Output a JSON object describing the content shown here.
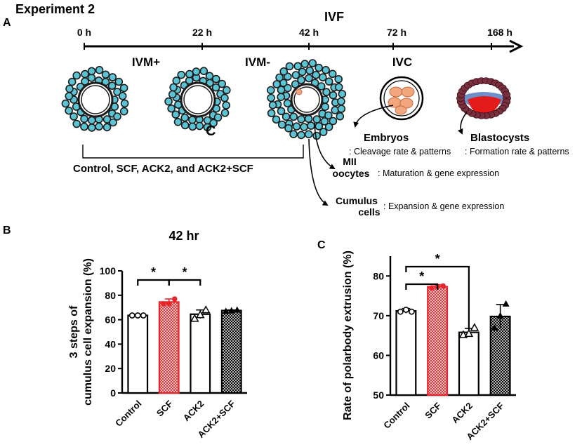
{
  "panel_labels": {
    "a": "A",
    "b": "B",
    "c": "C"
  },
  "experiment_title": "Experiment 2",
  "ivf_label": "IVF",
  "timeline": {
    "ticks": [
      "0 h",
      "22 h",
      "42 h",
      "72 h",
      "168 h"
    ],
    "stages": [
      "IVM+",
      "IVM-",
      "IVC"
    ]
  },
  "cell_mark": "C",
  "treatment_groups": "Control, SCF, ACK2, and ACK2+SCF",
  "outcomes": {
    "embryos_title": "Embryos",
    "embryos_desc": ": Cleavage rate & patterns",
    "blastocysts_title": "Blastocysts",
    "blastocysts_desc": ": Formation rate  & patterns",
    "mii_line1": "MII",
    "mii_line2": "oocytes",
    "mii_desc": ": Maturation & gene expression",
    "cumulus_line1": "Cumulus",
    "cumulus_line2": "cells",
    "cumulus_desc": ": Expansion & gene expression"
  },
  "colors": {
    "scf": "#e8252b",
    "cell_fill": "#5bc3d3",
    "black": "#000000"
  },
  "chart_data": [
    {
      "type": "bar",
      "panel": "B",
      "title": "42 hr",
      "ylabel_line1": "3 steps of",
      "ylabel_line2": "cumulus cell expansion (%)",
      "categories": [
        "Control",
        "SCF",
        "ACK2",
        "ACK2+SCF"
      ],
      "values": [
        63.5,
        74.5,
        64.5,
        67.5
      ],
      "errors": [
        0.5,
        2.5,
        3.5,
        0.5
      ],
      "points": [
        [
          63.5,
          63.5,
          63.5
        ],
        [
          73,
          73,
          77
        ],
        [
          61,
          64,
          68
        ],
        [
          67,
          67.5,
          68
        ]
      ],
      "ylim": [
        0,
        100
      ],
      "yticks": [
        0,
        20,
        40,
        60,
        80,
        100
      ],
      "significance": [
        {
          "pair": [
            "Control",
            "SCF"
          ],
          "label": "*"
        },
        {
          "pair": [
            "SCF",
            "ACK2"
          ],
          "label": "*"
        }
      ]
    },
    {
      "type": "bar",
      "panel": "C",
      "title": "",
      "ylabel": "Rate of polarbody extrusion (%)",
      "categories": [
        "Control",
        "SCF",
        "ACK2",
        "ACK2+SCF"
      ],
      "values": [
        71.2,
        77.3,
        65.8,
        69.8
      ],
      "errors": [
        0.6,
        0.5,
        1.0,
        3.0
      ],
      "points": [
        [
          71,
          71.5,
          71
        ],
        [
          77,
          77.3,
          77.5
        ],
        [
          65.2,
          65.5,
          67
        ],
        [
          67,
          70,
          73
        ]
      ],
      "ylim": [
        50,
        85
      ],
      "yticks": [
        50,
        60,
        70,
        80
      ],
      "significance": [
        {
          "pair": [
            "Control",
            "SCF"
          ],
          "label": "*"
        },
        {
          "pair": [
            "Control",
            "ACK2"
          ],
          "label": "*"
        }
      ]
    }
  ]
}
